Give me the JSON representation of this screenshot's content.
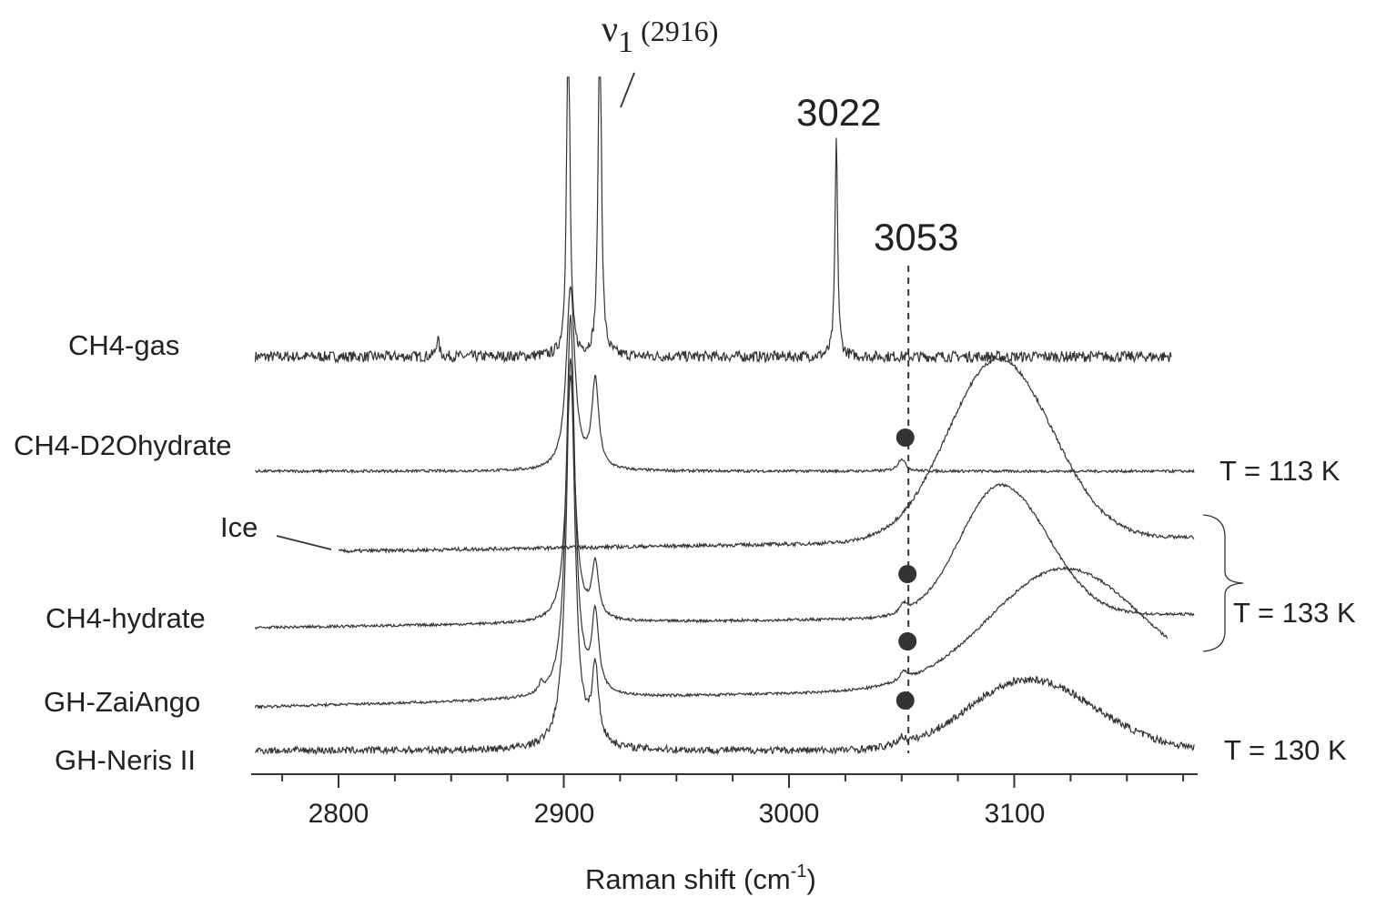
{
  "chart_data": {
    "type": "line",
    "title": "",
    "xlabel": "Raman shift (cm",
    "xlabel_sup": "-1",
    "xlabel_close": ")",
    "ylabel": "",
    "xlim": [
      2760,
      3180
    ],
    "x_ticks": [
      2800,
      2900,
      3000,
      3100
    ],
    "x_tick_labels": [
      "2800",
      "2900",
      "3000",
      "3100"
    ],
    "grid": false,
    "line_color": "#333333",
    "series": [
      {
        "name": "CH4-gas",
        "x_range": [
          2763,
          3170
        ],
        "baseline": 0,
        "peaks": [
          {
            "x": 2902,
            "h": 420,
            "w": 0.8
          },
          {
            "x": 2916,
            "h": 420,
            "w": 0.8
          },
          {
            "x": 3021,
            "h": 240,
            "w": 0.7
          },
          {
            "x": 2844,
            "h": 20,
            "w": 0.8
          }
        ],
        "broad": [],
        "noise": 6,
        "dots": []
      },
      {
        "name": "CH4-D2Ohydrate",
        "x_range": [
          2763,
          3180
        ],
        "baseline": 0,
        "peaks": [
          {
            "x": 2903,
            "h": 202,
            "w": 2.3
          },
          {
            "x": 2914,
            "h": 97,
            "w": 1.8
          },
          {
            "x": 3050,
            "h": 14,
            "w": 2.0
          }
        ],
        "broad": [],
        "noise": 1.5,
        "dots": [
          3050
        ]
      },
      {
        "name": "Ice",
        "x_range": [
          2800,
          3180
        ],
        "baseline": 0,
        "peaks": [],
        "broad": [
          {
            "x": 3093,
            "h": 200,
            "wl": 30,
            "wr": 32
          }
        ],
        "noise": 2,
        "dots": []
      },
      {
        "name": "CH4-hydrate",
        "x_range": [
          2763,
          3180
        ],
        "baseline": 0,
        "peaks": [
          {
            "x": 2903,
            "h": 270,
            "w": 2.3
          },
          {
            "x": 2914,
            "h": 60,
            "w": 1.8
          },
          {
            "x": 3051,
            "h": 10,
            "w": 2.0
          }
        ],
        "broad": [
          {
            "x": 3094,
            "h": 145,
            "wl": 24,
            "wr": 28
          }
        ],
        "noise": 1.5,
        "dots": [
          3051
        ]
      },
      {
        "name": "GH-ZaiAngo",
        "x_range": [
          2763,
          3168
        ],
        "baseline": 0,
        "peaks": [
          {
            "x": 2903,
            "h": 420,
            "w": 2.3
          },
          {
            "x": 2914,
            "h": 85,
            "w": 1.8
          },
          {
            "x": 3051,
            "h": 10,
            "w": 2.0
          },
          {
            "x": 2890,
            "h": 10,
            "w": 1.0
          }
        ],
        "broad": [
          {
            "x": 3122,
            "h": 130,
            "wl": 44,
            "wr": 45
          }
        ],
        "noise": 1.5,
        "dots": [
          3051
        ]
      },
      {
        "name": "GH-Neris II",
        "x_range": [
          2763,
          3180
        ],
        "baseline": 0,
        "peaks": [
          {
            "x": 2903,
            "h": 430,
            "w": 2.3
          },
          {
            "x": 2914,
            "h": 82,
            "w": 1.8
          },
          {
            "x": 3050,
            "h": 8,
            "w": 2.0
          }
        ],
        "broad": [
          {
            "x": 3106,
            "h": 78,
            "wl": 35,
            "wr": 40
          }
        ],
        "noise": 4,
        "dots": [
          3050
        ]
      }
    ],
    "annotations": {
      "nu1_symbol": "ν",
      "nu1_sub": "1",
      "nu1_value": "(2916)",
      "peak_3022": "3022",
      "peak_3053": "3053",
      "dashed_line_x": 3053
    },
    "temperature_labels": [
      "T = 113 K",
      "T = 133 K",
      "T = 130 K"
    ]
  }
}
